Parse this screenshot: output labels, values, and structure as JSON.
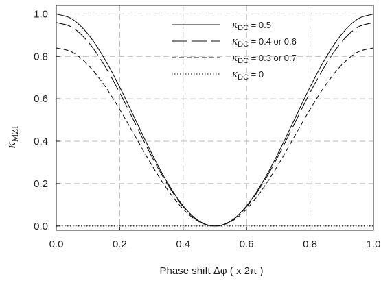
{
  "chart_data": {
    "type": "line",
    "xlabel": "Phase shift Δφ ( x 2π )",
    "ylabel": "κ",
    "ylabel_sub": "MZI",
    "xlim": [
      0,
      1
    ],
    "ylim": [
      -0.02,
      1.04
    ],
    "x_ticks": [
      0.0,
      0.2,
      0.4,
      0.6,
      0.8,
      1.0
    ],
    "x_tick_labels": [
      "0.0",
      "0.2",
      "0.4",
      "0.6",
      "0.8",
      "1.0"
    ],
    "y_ticks": [
      0.0,
      0.2,
      0.4,
      0.6,
      0.8,
      1.0
    ],
    "y_tick_labels": [
      "0.0",
      "0.2",
      "0.4",
      "0.6",
      "0.8",
      "1.0"
    ],
    "grid": true,
    "legend_position": "top-center",
    "x": [
      0.0,
      0.05,
      0.1,
      0.15,
      0.2,
      0.25,
      0.3,
      0.35,
      0.4,
      0.45,
      0.5,
      0.55,
      0.6,
      0.65,
      0.7,
      0.75,
      0.8,
      0.85,
      0.9,
      0.95,
      1.0
    ],
    "series": [
      {
        "name": "κDC = 0.5",
        "legend_kappa": "κ",
        "legend_sub": "DC",
        "legend_rest": " = 0.5",
        "dash": "solid",
        "values": [
          1.0,
          0.976,
          0.905,
          0.794,
          0.655,
          0.5,
          0.345,
          0.206,
          0.095,
          0.024,
          0.0,
          0.024,
          0.095,
          0.206,
          0.345,
          0.5,
          0.655,
          0.794,
          0.905,
          0.976,
          1.0
        ]
      },
      {
        "name": "κDC = 0.4 or 0.6",
        "legend_kappa": "κ",
        "legend_sub": "DC",
        "legend_rest": " = 0.4 or 0.6",
        "dash": "long-dash",
        "values": [
          0.96,
          0.937,
          0.869,
          0.762,
          0.629,
          0.48,
          0.331,
          0.198,
          0.091,
          0.023,
          0.0,
          0.023,
          0.091,
          0.198,
          0.331,
          0.48,
          0.629,
          0.762,
          0.869,
          0.937,
          0.96
        ]
      },
      {
        "name": "κDC = 0.3 or 0.7",
        "legend_kappa": "κ",
        "legend_sub": "DC",
        "legend_rest": " = 0.3 or 0.7",
        "dash": "short-dash",
        "values": [
          0.84,
          0.82,
          0.76,
          0.667,
          0.55,
          0.42,
          0.29,
          0.173,
          0.08,
          0.02,
          0.0,
          0.02,
          0.08,
          0.173,
          0.29,
          0.42,
          0.55,
          0.667,
          0.76,
          0.82,
          0.84
        ]
      },
      {
        "name": "κDC = 0",
        "legend_kappa": "κ",
        "legend_sub": "DC",
        "legend_rest": " = 0",
        "dash": "dotted",
        "values": [
          0.0,
          0.0,
          0.0,
          0.0,
          0.0,
          0.0,
          0.0,
          0.0,
          0.0,
          0.0,
          0.0,
          0.0,
          0.0,
          0.0,
          0.0,
          0.0,
          0.0,
          0.0,
          0.0,
          0.0,
          0.0
        ]
      }
    ]
  }
}
